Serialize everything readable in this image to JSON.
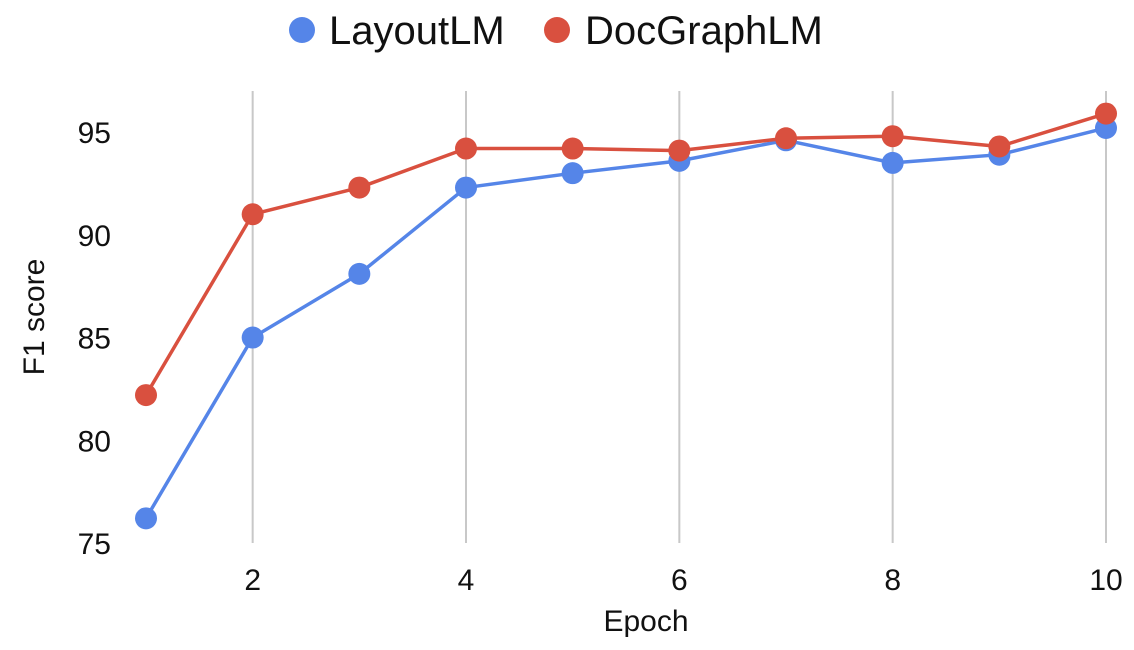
{
  "chart_data": {
    "type": "line",
    "xlabel": "Epoch",
    "ylabel": "F1 score",
    "xlim": [
      1,
      10
    ],
    "ylim": [
      75,
      97
    ],
    "x": [
      1,
      2,
      3,
      4,
      5,
      6,
      7,
      8,
      9,
      10
    ],
    "x_ticks": [
      2,
      4,
      6,
      8,
      10
    ],
    "y_ticks": [
      75,
      80,
      85,
      90,
      95
    ],
    "grid": "vertical",
    "legend_position": "top",
    "series": [
      {
        "name": "LayoutLM",
        "color": "#5585e8",
        "values": [
          76.2,
          85.0,
          88.1,
          92.3,
          93.0,
          93.6,
          94.6,
          93.5,
          93.9,
          95.2
        ]
      },
      {
        "name": "DocGraphLM",
        "color": "#d9503f",
        "values": [
          82.2,
          91.0,
          92.3,
          94.2,
          94.2,
          94.1,
          94.7,
          94.8,
          94.3,
          95.9
        ]
      }
    ]
  }
}
